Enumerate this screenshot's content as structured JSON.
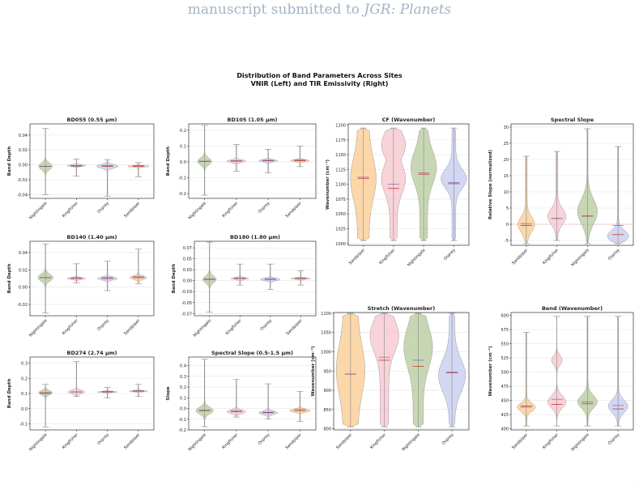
{
  "header": {
    "prefix": "manuscript submitted to ",
    "journal": "JGR: Planets"
  },
  "figure": {
    "title_line1": "Distribution of Band Parameters Across Sites",
    "title_line2": "VNIR (Left) and TIR Emissivity (Right)"
  },
  "colors": {
    "Nightingale": "#b5c99a",
    "Kingfisher": "#f6c4cc",
    "Osprey": "#c3cbef",
    "Sandpiper": "#f9c98d",
    "edge": "#777777",
    "median": "#cc3333",
    "mean": "#6a5aa0"
  },
  "chart_data": [
    {
      "id": "bd055",
      "type": "violin",
      "title": "BD055 (0.55 μm)",
      "ylabel": "Band Depth",
      "categories": [
        "Nightingale",
        "Kingfisher",
        "Osprey",
        "Sandpiper"
      ],
      "ylim": [
        -0.045,
        0.055
      ],
      "yticks": [
        -0.04,
        -0.02,
        0.0,
        0.02,
        0.04
      ],
      "series": [
        {
          "site": "Nightingale",
          "min": -0.04,
          "max": 0.049,
          "median": -0.002,
          "mean": -0.002,
          "width": 0.45
        },
        {
          "site": "Kingfisher",
          "min": -0.015,
          "max": 0.008,
          "median": -0.001,
          "mean": -0.002,
          "width": 0.6
        },
        {
          "site": "Osprey",
          "min": -0.042,
          "max": 0.007,
          "median": -0.002,
          "mean": -0.001,
          "width": 0.7
        },
        {
          "site": "Sandpiper",
          "min": -0.016,
          "max": 0.003,
          "median": -0.002,
          "mean": -0.001,
          "width": 0.7
        }
      ]
    },
    {
      "id": "bd105",
      "type": "violin",
      "title": "BD105 (1.05 μm)",
      "ylabel": "Band Depth",
      "categories": [
        "Nightingale",
        "Kingfisher",
        "Osprey",
        "Sandpiper"
      ],
      "ylim": [
        -0.23,
        0.24
      ],
      "yticks": [
        -0.2,
        -0.1,
        0.0,
        0.1,
        0.2
      ],
      "series": [
        {
          "site": "Nightingale",
          "min": -0.21,
          "max": 0.23,
          "median": 0.003,
          "mean": 0.005,
          "width": 0.45
        },
        {
          "site": "Kingfisher",
          "min": -0.06,
          "max": 0.11,
          "median": 0.005,
          "mean": 0.008,
          "width": 0.6
        },
        {
          "site": "Osprey",
          "min": -0.07,
          "max": 0.08,
          "median": 0.007,
          "mean": 0.01,
          "width": 0.6
        },
        {
          "site": "Sandpiper",
          "min": -0.03,
          "max": 0.1,
          "median": 0.008,
          "mean": 0.012,
          "width": 0.6
        }
      ]
    },
    {
      "id": "bd140",
      "type": "violin",
      "title": "BD140 (1.40 μm)",
      "ylabel": "Band Depth",
      "categories": [
        "Nightingale",
        "Kingfisher",
        "Osprey",
        "Sandpiper"
      ],
      "ylim": [
        -0.033,
        0.053
      ],
      "yticks": [
        -0.02,
        0.0,
        0.02,
        0.04
      ],
      "series": [
        {
          "site": "Nightingale",
          "min": -0.03,
          "max": 0.05,
          "median": 0.011,
          "mean": 0.011,
          "width": 0.5
        },
        {
          "site": "Kingfisher",
          "min": 0.005,
          "max": 0.027,
          "median": 0.01,
          "mean": 0.011,
          "width": 0.6
        },
        {
          "site": "Osprey",
          "min": -0.004,
          "max": 0.03,
          "median": 0.01,
          "mean": 0.011,
          "width": 0.65
        },
        {
          "site": "Sandpiper",
          "min": 0.004,
          "max": 0.044,
          "median": 0.011,
          "mean": 0.012,
          "width": 0.55
        }
      ]
    },
    {
      "id": "bd180",
      "type": "violin",
      "title": "BD180 (1.80 μm)",
      "ylabel": "Band Depth",
      "categories": [
        "Nightingale",
        "Kingfisher",
        "Osprey",
        "Sandpiper"
      ],
      "ylim": [
        -0.08,
        0.09
      ],
      "yticks": [
        -0.075,
        -0.05,
        -0.025,
        0.0,
        0.025,
        0.05,
        0.075
      ],
      "series": [
        {
          "site": "Nightingale",
          "min": -0.072,
          "max": 0.088,
          "median": 0.003,
          "mean": 0.004,
          "width": 0.45
        },
        {
          "site": "Kingfisher",
          "min": -0.01,
          "max": 0.038,
          "median": 0.005,
          "mean": 0.006,
          "width": 0.6
        },
        {
          "site": "Osprey",
          "min": -0.02,
          "max": 0.038,
          "median": 0.003,
          "mean": 0.004,
          "width": 0.65
        },
        {
          "site": "Sandpiper",
          "min": -0.01,
          "max": 0.023,
          "median": 0.005,
          "mean": 0.006,
          "width": 0.65
        }
      ]
    },
    {
      "id": "bd274",
      "type": "violin",
      "title": "BD274 (2.74 μm)",
      "ylabel": "Band Depth",
      "categories": [
        "Nightingale",
        "Kingfisher",
        "Osprey",
        "Sandpiper"
      ],
      "ylim": [
        -0.14,
        0.34
      ],
      "yticks": [
        -0.1,
        0.0,
        0.1,
        0.2,
        0.3
      ],
      "series": [
        {
          "site": "Nightingale",
          "min": -0.12,
          "max": 0.16,
          "median": 0.105,
          "mean": 0.1,
          "width": 0.45
        },
        {
          "site": "Kingfisher",
          "min": 0.08,
          "max": 0.31,
          "median": 0.11,
          "mean": 0.11,
          "width": 0.55
        },
        {
          "site": "Osprey",
          "min": 0.07,
          "max": 0.14,
          "median": 0.11,
          "mean": 0.115,
          "width": 0.65
        },
        {
          "site": "Sandpiper",
          "min": 0.08,
          "max": 0.16,
          "median": 0.115,
          "mean": 0.12,
          "width": 0.6
        }
      ]
    },
    {
      "id": "slope_vnir",
      "type": "violin",
      "title": "Spectral Slope (0.5-1.5 μm)",
      "ylabel": "Slope",
      "categories": [
        "Nightingale",
        "Kingfisher",
        "Osprey",
        "Sandpiper"
      ],
      "ylim": [
        -0.2,
        0.48
      ],
      "yticks": [
        -0.2,
        -0.1,
        0.0,
        0.1,
        0.2,
        0.3,
        0.4
      ],
      "series": [
        {
          "site": "Nightingale",
          "min": -0.17,
          "max": 0.46,
          "median": -0.02,
          "mean": -0.015,
          "width": 0.55
        },
        {
          "site": "Kingfisher",
          "min": -0.08,
          "max": 0.27,
          "median": -0.03,
          "mean": -0.02,
          "width": 0.6
        },
        {
          "site": "Osprey",
          "min": -0.1,
          "max": 0.23,
          "median": -0.04,
          "mean": -0.035,
          "width": 0.6
        },
        {
          "site": "Sandpiper",
          "min": -0.12,
          "max": 0.16,
          "median": -0.02,
          "mean": -0.01,
          "width": 0.65
        }
      ]
    },
    {
      "id": "cf",
      "type": "violin",
      "title": "CF (Wavenumber)",
      "ylabel": "Wavenumber (cm⁻¹)",
      "categories": [
        "Sandpiper",
        "Kingfisher",
        "Nightingale",
        "Osprey"
      ],
      "ylim": [
        997,
        1202
      ],
      "yticks": [
        1000,
        1025,
        1050,
        1075,
        1100,
        1125,
        1150,
        1175,
        1200
      ],
      "series": [
        {
          "site": "Sandpiper",
          "min": 1005,
          "max": 1195,
          "median": 1110,
          "mean": 1112,
          "width": 0.85
        },
        {
          "site": "Kingfisher",
          "min": 1005,
          "max": 1195,
          "median": 1093,
          "mean": 1100,
          "width": 0.8
        },
        {
          "site": "Nightingale",
          "min": 1005,
          "max": 1195,
          "median": 1117,
          "mean": 1119,
          "width": 0.85
        },
        {
          "site": "Osprey",
          "min": 1005,
          "max": 1195,
          "median": 1101,
          "mean": 1103,
          "width": 0.85
        }
      ]
    },
    {
      "id": "spectral_slope",
      "type": "violin",
      "title": "Spectral Slope",
      "ylabel": "Relative Slope (normalized)",
      "categories": [
        "Sandpiper",
        "Kingfisher",
        "Nightingale",
        "Osprey"
      ],
      "ylim": [
        -6.5,
        31
      ],
      "yticks": [
        -5,
        0,
        5,
        10,
        15,
        20,
        25,
        30
      ],
      "reference_line": 0,
      "series": [
        {
          "site": "Sandpiper",
          "min": -6,
          "max": 21,
          "median": -0.4,
          "mean": 0.2,
          "width": 0.55
        },
        {
          "site": "Kingfisher",
          "min": -5,
          "max": 22.5,
          "median": 1.8,
          "mean": 1.8,
          "width": 0.6
        },
        {
          "site": "Nightingale",
          "min": -6,
          "max": 29.5,
          "median": 2.5,
          "mean": 2.6,
          "width": 0.65
        },
        {
          "site": "Osprey",
          "min": -6,
          "max": 24,
          "median": -3.2,
          "mean": -0.4,
          "width": 0.7
        }
      ]
    },
    {
      "id": "stretch",
      "type": "violin",
      "title": "Stretch (Wavenumber)",
      "ylabel": "Wavenumber (cm⁻¹)",
      "categories": [
        "Sandpiper",
        "Kingfisher",
        "Nightingale",
        "Osprey"
      ],
      "ylim": [
        797,
        1102
      ],
      "yticks": [
        800,
        850,
        900,
        950,
        1000,
        1050,
        1100
      ],
      "series": [
        {
          "site": "Sandpiper",
          "min": 805,
          "max": 1100,
          "median": 942,
          "mean": 942,
          "width": 0.85
        },
        {
          "site": "Kingfisher",
          "min": 805,
          "max": 1100,
          "median": 978,
          "mean": 986,
          "width": 0.85
        },
        {
          "site": "Nightingale",
          "min": 805,
          "max": 1100,
          "median": 962,
          "mean": 978,
          "width": 0.85
        },
        {
          "site": "Osprey",
          "min": 805,
          "max": 1100,
          "median": 945,
          "mean": 947,
          "width": 0.8
        }
      ]
    },
    {
      "id": "bend",
      "type": "violin",
      "title": "Bend (Wavenumber)",
      "ylabel": "Wavenumber (cm⁻¹)",
      "categories": [
        "Sandpiper",
        "Kingfisher",
        "Nightingale",
        "Osprey"
      ],
      "ylim": [
        398,
        605
      ],
      "yticks": [
        400,
        425,
        450,
        475,
        500,
        525,
        550,
        575,
        600
      ],
      "series": [
        {
          "site": "Sandpiper",
          "min": 405,
          "max": 570,
          "median": 440,
          "mean": 438,
          "width": 0.6
        },
        {
          "site": "Kingfisher",
          "min": 405,
          "max": 598,
          "median": 443,
          "mean": 452,
          "width": 0.6
        },
        {
          "site": "Nightingale",
          "min": 405,
          "max": 598,
          "median": 444,
          "mean": 447,
          "width": 0.65
        },
        {
          "site": "Osprey",
          "min": 405,
          "max": 598,
          "median": 435,
          "mean": 441,
          "width": 0.65
        }
      ]
    }
  ]
}
